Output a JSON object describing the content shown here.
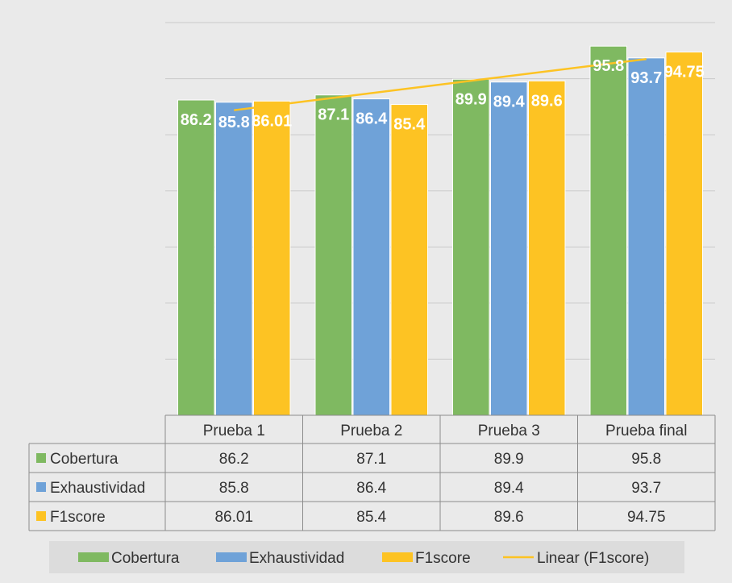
{
  "chart_data": {
    "type": "bar",
    "categories": [
      "Prueba 1",
      "Prueba 2",
      "Prueba 3",
      "Prueba final"
    ],
    "series": [
      {
        "name": "Cobertura",
        "color": "#7fb961",
        "values": [
          86.2,
          87.1,
          89.9,
          95.8
        ]
      },
      {
        "name": "Exhaustividad",
        "color": "#6fa2d8",
        "values": [
          85.8,
          86.4,
          89.4,
          93.7
        ]
      },
      {
        "name": "F1score",
        "color": "#fdc323",
        "values": [
          86.01,
          85.4,
          89.6,
          94.75
        ]
      }
    ],
    "data_labels": [
      [
        "86.2",
        "87.1",
        "89.9",
        "95.8"
      ],
      [
        "85.8",
        "86.4",
        "89.4",
        "93.7"
      ],
      [
        "86.01",
        "85.4",
        "89.6",
        "94.75"
      ]
    ],
    "table": {
      "rows": [
        {
          "label": "Cobertura",
          "values": [
            "86.2",
            "87.1",
            "89.9",
            "95.8"
          ]
        },
        {
          "label": "Exhaustividad",
          "values": [
            "85.8",
            "86.4",
            "89.4",
            "93.7"
          ]
        },
        {
          "label": "F1score",
          "values": [
            "86.01",
            "85.4",
            "89.6",
            "94.75"
          ]
        }
      ]
    },
    "trendline": {
      "series": "F1score",
      "label": "Linear (F1score)",
      "type": "linear",
      "color": "#fdc323"
    },
    "title": "",
    "xlabel": "",
    "ylabel": "",
    "ylim": [
      30,
      100
    ],
    "grid": true,
    "legend_position": "bottom",
    "background": "#eaeaea"
  }
}
